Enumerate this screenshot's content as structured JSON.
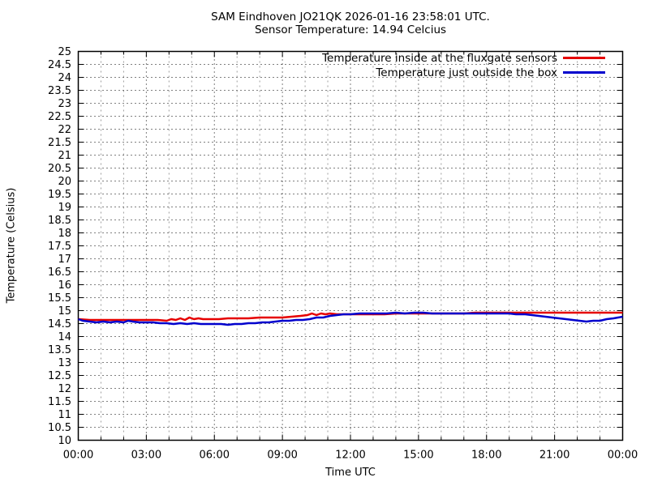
{
  "page": {
    "background": "#ffffff"
  },
  "chart_data": {
    "type": "line",
    "title": "SAM Eindhoven JO21QK 2026-01-16 23:58:01 UTC.",
    "subtitle": "Sensor Temperature: 14.94 Celcius",
    "xlabel": "Time UTC",
    "ylabel": "Temperature (Celsius)",
    "xlim_hours": [
      0,
      24
    ],
    "ylim": [
      10,
      25
    ],
    "ytick_step": 0.5,
    "xtick_interval_hours": 3,
    "minor_xtick_interval_hours": 1,
    "xtick_labels": [
      "00:00",
      "03:00",
      "06:00",
      "09:00",
      "12:00",
      "15:00",
      "18:00",
      "21:00",
      "00:00"
    ],
    "grid": {
      "major_color": "#000000",
      "minor_color": "#9e9e9e",
      "on": true
    },
    "legend_position": "top-right",
    "axis_color": "#000000",
    "series": [
      {
        "name": "Temperature inside at the fluxgate sensors",
        "color": "#e60000",
        "points": [
          [
            0,
            14.66
          ],
          [
            0.5,
            14.65
          ],
          [
            1,
            14.64
          ],
          [
            1.5,
            14.64
          ],
          [
            2,
            14.64
          ],
          [
            2.5,
            14.64
          ],
          [
            3,
            14.64
          ],
          [
            3.5,
            14.63
          ],
          [
            3.9,
            14.62
          ],
          [
            4.1,
            14.68
          ],
          [
            4.3,
            14.63
          ],
          [
            4.5,
            14.7
          ],
          [
            4.7,
            14.65
          ],
          [
            4.9,
            14.72
          ],
          [
            5.1,
            14.66
          ],
          [
            5.3,
            14.71
          ],
          [
            5.5,
            14.67
          ],
          [
            5.8,
            14.68
          ],
          [
            6.2,
            14.68
          ],
          [
            6.6,
            14.69
          ],
          [
            7,
            14.7
          ],
          [
            7.5,
            14.71
          ],
          [
            8,
            14.72
          ],
          [
            8.5,
            14.73
          ],
          [
            9,
            14.74
          ],
          [
            9.4,
            14.76
          ],
          [
            9.8,
            14.8
          ],
          [
            10.1,
            14.83
          ],
          [
            10.3,
            14.88
          ],
          [
            10.5,
            14.84
          ],
          [
            10.7,
            14.9
          ],
          [
            10.9,
            14.85
          ],
          [
            11.1,
            14.88
          ],
          [
            11.4,
            14.86
          ],
          [
            11.8,
            14.87
          ],
          [
            12.2,
            14.87
          ],
          [
            12.6,
            14.86
          ],
          [
            13,
            14.87
          ],
          [
            13.5,
            14.87
          ],
          [
            14,
            14.88
          ],
          [
            14.5,
            14.88
          ],
          [
            15,
            14.89
          ],
          [
            15.5,
            14.89
          ],
          [
            16,
            14.9
          ],
          [
            16.5,
            14.9
          ],
          [
            17,
            14.9
          ],
          [
            17.5,
            14.91
          ],
          [
            18,
            14.91
          ],
          [
            18.5,
            14.91
          ],
          [
            19,
            14.92
          ],
          [
            19.5,
            14.92
          ],
          [
            20,
            14.92
          ],
          [
            20.5,
            14.92
          ],
          [
            21,
            14.92
          ],
          [
            21.5,
            14.92
          ],
          [
            22,
            14.92
          ],
          [
            22.5,
            14.93
          ],
          [
            23,
            14.93
          ],
          [
            23.5,
            14.93
          ],
          [
            24,
            14.93
          ]
        ]
      },
      {
        "name": "Temperature just outside the box",
        "color": "#0000cd",
        "points": [
          [
            0,
            14.66
          ],
          [
            0.2,
            14.61
          ],
          [
            0.5,
            14.58
          ],
          [
            0.8,
            14.56
          ],
          [
            1.1,
            14.59
          ],
          [
            1.4,
            14.56
          ],
          [
            1.7,
            14.57
          ],
          [
            2,
            14.55
          ],
          [
            2.2,
            14.61
          ],
          [
            2.4,
            14.57
          ],
          [
            2.7,
            14.55
          ],
          [
            3,
            14.54
          ],
          [
            3.3,
            14.56
          ],
          [
            3.6,
            14.53
          ],
          [
            3.9,
            14.51
          ],
          [
            4.2,
            14.48
          ],
          [
            4.5,
            14.51
          ],
          [
            4.8,
            14.48
          ],
          [
            5.1,
            14.51
          ],
          [
            5.4,
            14.47
          ],
          [
            5.7,
            14.49
          ],
          [
            6,
            14.47
          ],
          [
            6.3,
            14.49
          ],
          [
            6.6,
            14.46
          ],
          [
            6.9,
            14.48
          ],
          [
            7.2,
            14.49
          ],
          [
            7.5,
            14.51
          ],
          [
            7.8,
            14.52
          ],
          [
            8.1,
            14.54
          ],
          [
            8.4,
            14.56
          ],
          [
            8.7,
            14.58
          ],
          [
            9,
            14.6
          ],
          [
            9.3,
            14.61
          ],
          [
            9.6,
            14.63
          ],
          [
            9.9,
            14.65
          ],
          [
            10.2,
            14.68
          ],
          [
            10.5,
            14.72
          ],
          [
            10.8,
            14.75
          ],
          [
            11.1,
            14.79
          ],
          [
            11.4,
            14.83
          ],
          [
            11.7,
            14.86
          ],
          [
            12,
            14.87
          ],
          [
            12.4,
            14.88
          ],
          [
            12.8,
            14.89
          ],
          [
            13.2,
            14.9
          ],
          [
            13.6,
            14.9
          ],
          [
            14,
            14.91
          ],
          [
            14.4,
            14.9
          ],
          [
            14.8,
            14.92
          ],
          [
            15.2,
            14.91
          ],
          [
            15.6,
            14.9
          ],
          [
            16,
            14.89
          ],
          [
            16.5,
            14.88
          ],
          [
            17,
            14.88
          ],
          [
            17.5,
            14.88
          ],
          [
            18,
            14.88
          ],
          [
            18.5,
            14.88
          ],
          [
            19,
            14.88
          ],
          [
            19.3,
            14.87
          ],
          [
            19.7,
            14.85
          ],
          [
            20,
            14.84
          ],
          [
            20.3,
            14.81
          ],
          [
            20.6,
            14.78
          ],
          [
            20.9,
            14.75
          ],
          [
            21.2,
            14.71
          ],
          [
            21.5,
            14.68
          ],
          [
            21.8,
            14.65
          ],
          [
            22.1,
            14.61
          ],
          [
            22.4,
            14.59
          ],
          [
            22.7,
            14.62
          ],
          [
            23,
            14.61
          ],
          [
            23.3,
            14.66
          ],
          [
            23.6,
            14.7
          ],
          [
            23.8,
            14.74
          ],
          [
            24,
            14.78
          ]
        ]
      }
    ]
  }
}
